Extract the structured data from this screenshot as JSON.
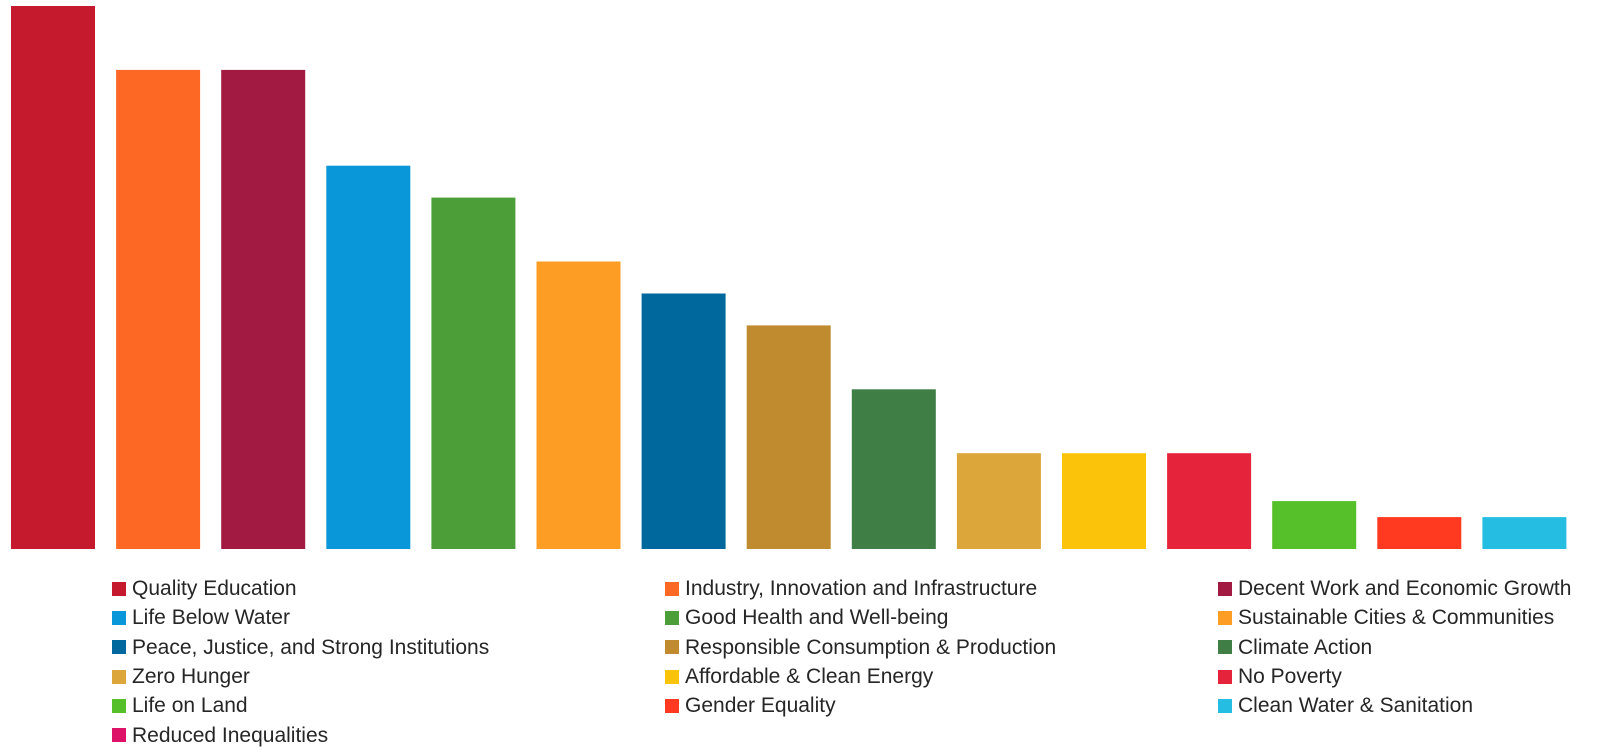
{
  "chart_data": {
    "type": "bar",
    "title": "",
    "xlabel": "",
    "ylabel": "",
    "ylim": [
      0,
      17
    ],
    "grid": false,
    "legend_position": "bottom",
    "categories": [
      "Quality Education",
      "Industry, Innovation and Infrastructure",
      "Decent Work and Economic Growth",
      "Life Below Water",
      "Good Health and Well-being",
      "Sustainable Cities & Communities",
      "Peace, Justice, and Strong Institutions",
      "Responsible Consumption & Production",
      "Climate Action",
      "Zero Hunger",
      "Affordable & Clean Energy",
      "No Poverty",
      "Life on Land",
      "Gender Equality",
      "Clean Water & Sanitation",
      "Reduced Inequalities"
    ],
    "values": [
      17,
      15,
      15,
      12,
      11,
      9,
      8,
      7,
      5,
      3,
      3,
      3,
      1.5,
      1,
      1,
      0
    ],
    "colors": [
      "#C5192D",
      "#FD6925",
      "#A21942",
      "#0A97D9",
      "#4C9F38",
      "#FD9D24",
      "#00689D",
      "#BF8B2E",
      "#3F7E44",
      "#DDA63A",
      "#FCC30B",
      "#E5243B",
      "#56C02B",
      "#FF3A21",
      "#26BDE2",
      "#DD1367"
    ]
  }
}
